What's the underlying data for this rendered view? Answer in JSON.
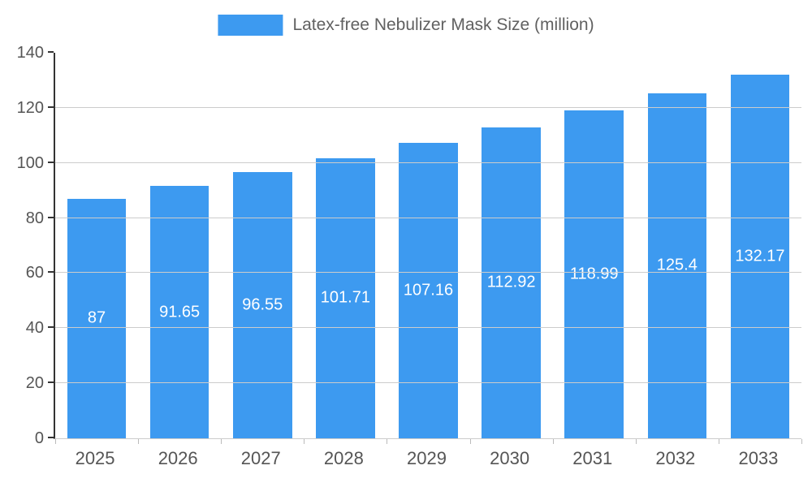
{
  "legend": {
    "label": "Latex-free Nebulizer Mask Size (million)"
  },
  "chart_data": {
    "type": "bar",
    "title": "Latex-free Nebulizer Mask Size (million)",
    "categories": [
      "2025",
      "2026",
      "2027",
      "2028",
      "2029",
      "2030",
      "2031",
      "2032",
      "2033"
    ],
    "values": [
      87,
      91.65,
      96.55,
      101.71,
      107.16,
      112.92,
      118.99,
      125.4,
      132.17
    ],
    "value_labels": [
      "87",
      "91.65",
      "96.55",
      "101.71",
      "107.16",
      "112.92",
      "118.99",
      "125.4",
      "132.17"
    ],
    "xlabel": "",
    "ylabel": "",
    "ylim": [
      0,
      140
    ],
    "ytick_step": 20,
    "ytick_labels": [
      "0",
      "20",
      "40",
      "60",
      "80",
      "100",
      "120",
      "140"
    ],
    "grid": true,
    "legend_position": "top-center",
    "bar_color": "#3d9af0",
    "bar_label_color": "#ffffff",
    "axis_text_color": "#555555",
    "legend_text_color": "#616161",
    "gridline_color": "#cccccc"
  }
}
